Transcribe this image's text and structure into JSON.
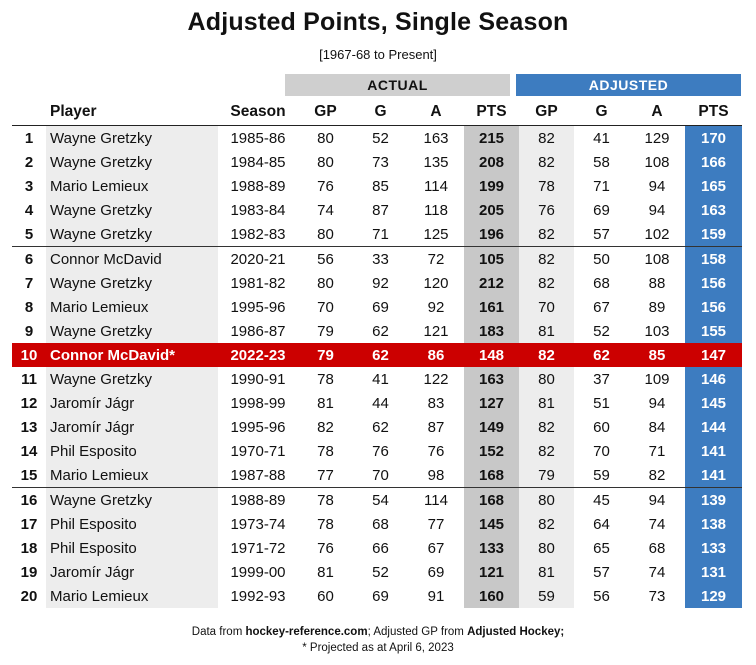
{
  "title": "Adjusted Points, Single Season",
  "subtitle": "[1967-68 to Present]",
  "groups": {
    "actual": "ACTUAL",
    "adjusted": "ADJUSTED"
  },
  "columns": [
    "",
    "Player",
    "Season",
    "GP",
    "G",
    "A",
    "PTS",
    "GP",
    "G",
    "A",
    "PTS"
  ],
  "highlight_color": "#cc0000",
  "adjusted_color": "#3d7cc0",
  "rows": [
    [
      "1",
      "Wayne Gretzky",
      "1985-86",
      "80",
      "52",
      "163",
      "215",
      "82",
      "41",
      "129",
      "170"
    ],
    [
      "2",
      "Wayne Gretzky",
      "1984-85",
      "80",
      "73",
      "135",
      "208",
      "82",
      "58",
      "108",
      "166"
    ],
    [
      "3",
      "Mario Lemieux",
      "1988-89",
      "76",
      "85",
      "114",
      "199",
      "78",
      "71",
      "94",
      "165"
    ],
    [
      "4",
      "Wayne Gretzky",
      "1983-84",
      "74",
      "87",
      "118",
      "205",
      "76",
      "69",
      "94",
      "163"
    ],
    [
      "5",
      "Wayne Gretzky",
      "1982-83",
      "80",
      "71",
      "125",
      "196",
      "82",
      "57",
      "102",
      "159"
    ],
    [
      "6",
      "Connor McDavid",
      "2020-21",
      "56",
      "33",
      "72",
      "105",
      "82",
      "50",
      "108",
      "158"
    ],
    [
      "7",
      "Wayne Gretzky",
      "1981-82",
      "80",
      "92",
      "120",
      "212",
      "82",
      "68",
      "88",
      "156"
    ],
    [
      "8",
      "Mario Lemieux",
      "1995-96",
      "70",
      "69",
      "92",
      "161",
      "70",
      "67",
      "89",
      "156"
    ],
    [
      "9",
      "Wayne Gretzky",
      "1986-87",
      "79",
      "62",
      "121",
      "183",
      "81",
      "52",
      "103",
      "155"
    ],
    [
      "10",
      "Connor McDavid*",
      "2022-23",
      "79",
      "62",
      "86",
      "148",
      "82",
      "62",
      "85",
      "147"
    ],
    [
      "11",
      "Wayne Gretzky",
      "1990-91",
      "78",
      "41",
      "122",
      "163",
      "80",
      "37",
      "109",
      "146"
    ],
    [
      "12",
      "Jaromír Jágr",
      "1998-99",
      "81",
      "44",
      "83",
      "127",
      "81",
      "51",
      "94",
      "145"
    ],
    [
      "13",
      "Jaromír Jágr",
      "1995-96",
      "82",
      "62",
      "87",
      "149",
      "82",
      "60",
      "84",
      "144"
    ],
    [
      "14",
      "Phil Esposito",
      "1970-71",
      "78",
      "76",
      "76",
      "152",
      "82",
      "70",
      "71",
      "141"
    ],
    [
      "15",
      "Mario Lemieux",
      "1987-88",
      "77",
      "70",
      "98",
      "168",
      "79",
      "59",
      "82",
      "141"
    ],
    [
      "16",
      "Wayne Gretzky",
      "1988-89",
      "78",
      "54",
      "114",
      "168",
      "80",
      "45",
      "94",
      "139"
    ],
    [
      "17",
      "Phil Esposito",
      "1973-74",
      "78",
      "68",
      "77",
      "145",
      "82",
      "64",
      "74",
      "138"
    ],
    [
      "18",
      "Phil Esposito",
      "1971-72",
      "76",
      "66",
      "67",
      "133",
      "80",
      "65",
      "68",
      "133"
    ],
    [
      "19",
      "Jaromír Jágr",
      "1999-00",
      "81",
      "52",
      "69",
      "121",
      "81",
      "57",
      "74",
      "131"
    ],
    [
      "20",
      "Mario Lemieux",
      "1992-93",
      "60",
      "69",
      "91",
      "160",
      "59",
      "56",
      "73",
      "129"
    ]
  ],
  "separators_before": [
    6,
    16
  ],
  "highlight_rank": 10,
  "footer": {
    "p1": "Data from ",
    "b1": "hockey-reference.com",
    "p2": "; Adjusted GP from ",
    "b2": "Adjusted Hockey;",
    "line2": "* Projected as at April 6, 2023"
  }
}
